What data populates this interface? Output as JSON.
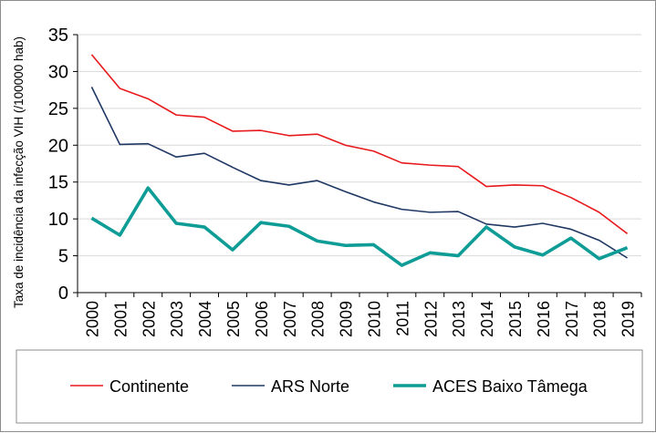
{
  "chart_data": {
    "type": "line",
    "title": "",
    "xlabel": "",
    "ylabel": "Taxa de incidência da infecção VIH (/100000 hab)",
    "x": [
      "2000",
      "2001",
      "2002",
      "2003",
      "2004",
      "2005",
      "2006",
      "2007",
      "2008",
      "2009",
      "2010",
      "2011",
      "2012",
      "2013",
      "2014",
      "2015",
      "2016",
      "2017",
      "2018",
      "2019"
    ],
    "ylim": [
      0,
      35
    ],
    "yticks": [
      0,
      5,
      10,
      15,
      20,
      25,
      30,
      35
    ],
    "grid": true,
    "legend_position": "bottom",
    "series": [
      {
        "name": "Continente",
        "color": "#e8191c",
        "values": [
          32.3,
          27.7,
          26.3,
          24.1,
          23.8,
          21.9,
          22.0,
          21.3,
          21.5,
          20.0,
          19.2,
          17.6,
          17.3,
          17.1,
          14.4,
          14.6,
          14.5,
          12.9,
          10.9,
          8.0
        ]
      },
      {
        "name": "ARS Norte",
        "color": "#1f3864",
        "values": [
          27.9,
          20.1,
          20.2,
          18.4,
          18.9,
          17.0,
          15.2,
          14.6,
          15.2,
          13.7,
          12.3,
          11.3,
          10.9,
          11.0,
          9.3,
          8.9,
          9.4,
          8.6,
          7.1,
          4.7
        ]
      },
      {
        "name": "ACES Baixo Tâmega",
        "color": "#0e9c96",
        "values": [
          10.1,
          7.8,
          14.2,
          9.4,
          8.9,
          5.8,
          9.5,
          9.0,
          7.0,
          6.4,
          6.5,
          3.7,
          5.4,
          5.0,
          8.9,
          6.2,
          5.1,
          7.4,
          4.6,
          6.1
        ]
      }
    ]
  }
}
